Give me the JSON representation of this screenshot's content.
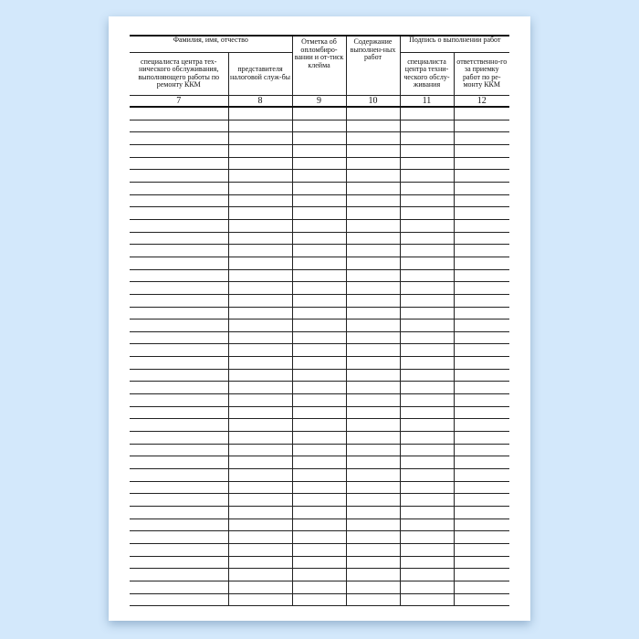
{
  "form": {
    "group_fio": "Фамилия, имя, отчество",
    "group_signature": "Подпись о выполнении работ",
    "columns": [
      {
        "label": "специалиста центра тех-нического обслуживания, выполняющего работы по ремонту ККМ",
        "number": "7"
      },
      {
        "label": "представителя налоговой служ-бы",
        "number": "8"
      },
      {
        "label": "Отметка об опломбиро-вании и от-тиск клейма",
        "number": "9"
      },
      {
        "label": "Содержание выполнен-ных работ",
        "number": "10"
      },
      {
        "label": "специалиста центра техни-ческого обслу-живания",
        "number": "11"
      },
      {
        "label": "ответственно-го за приемку работ по ре-монту ККМ",
        "number": "12"
      }
    ],
    "empty_rows": 40
  }
}
